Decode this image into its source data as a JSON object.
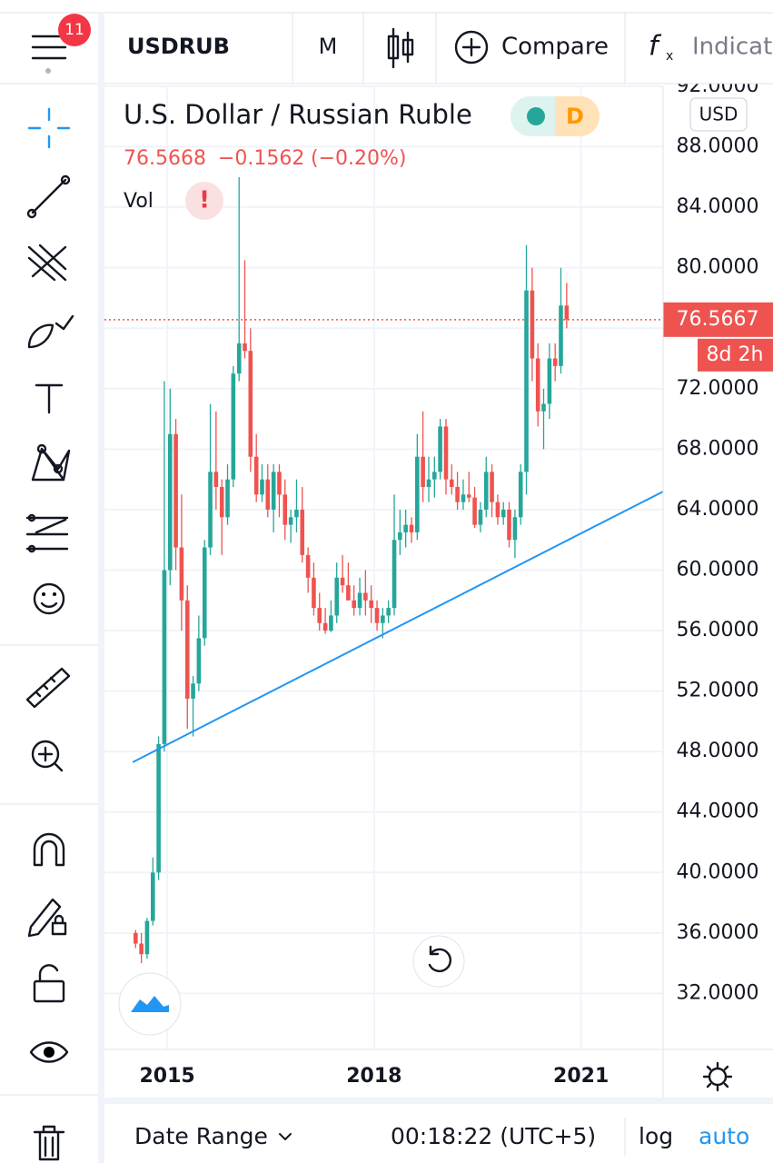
{
  "toolbar": {
    "badge": "11",
    "symbol": "USDRUB",
    "interval": "M",
    "compare": "Compare",
    "indicators": "Indicators"
  },
  "legend": {
    "title": "U.S. Dollar / Russian Ruble",
    "mode": "D",
    "currency": "USD",
    "last": "76.5668",
    "change": "−0.1562",
    "change_pct": "(−0.20%)",
    "volume": "Vol",
    "alert": "!"
  },
  "chart_data": {
    "type": "candlestick",
    "up_color": "#26a69a",
    "down_color": "#ef5350",
    "xlim": [
      2014.09,
      2022.19
    ],
    "xticks": [
      2015,
      2018,
      2021
    ],
    "ylim": [
      28.3,
      92.0
    ],
    "yticks": [
      {
        "value": 32,
        "label": "32.0000"
      },
      {
        "value": 36,
        "label": "36.0000"
      },
      {
        "value": 40,
        "label": "40.0000"
      },
      {
        "value": 44,
        "label": "44.0000"
      },
      {
        "value": 48,
        "label": "48.0000"
      },
      {
        "value": 52,
        "label": "52.0000"
      },
      {
        "value": 56,
        "label": "56.0000"
      },
      {
        "value": 60,
        "label": "60.0000"
      },
      {
        "value": 64,
        "label": "64.0000"
      },
      {
        "value": 68,
        "label": "68.0000"
      },
      {
        "value": 72,
        "label": "72.0000"
      },
      {
        "value": 76,
        "label": "76.0000"
      },
      {
        "value": 80,
        "label": "80.0000"
      },
      {
        "value": 84,
        "label": "84.0000"
      },
      {
        "value": 88,
        "label": "88.0000"
      },
      {
        "value": 92,
        "label": "92.0000"
      }
    ],
    "grid": true,
    "x": [
      2014.542,
      2014.625,
      2014.708,
      2014.792,
      2014.875,
      2014.958,
      2015.042,
      2015.125,
      2015.208,
      2015.292,
      2015.375,
      2015.458,
      2015.542,
      2015.625,
      2015.708,
      2015.792,
      2015.875,
      2015.958,
      2016.042,
      2016.125,
      2016.208,
      2016.292,
      2016.375,
      2016.458,
      2016.542,
      2016.625,
      2016.708,
      2016.792,
      2016.875,
      2016.958,
      2017.042,
      2017.125,
      2017.208,
      2017.292,
      2017.375,
      2017.458,
      2017.542,
      2017.625,
      2017.708,
      2017.792,
      2017.875,
      2017.958,
      2018.042,
      2018.125,
      2018.208,
      2018.292,
      2018.375,
      2018.458,
      2018.542,
      2018.625,
      2018.708,
      2018.792,
      2018.875,
      2018.958,
      2019.042,
      2019.125,
      2019.208,
      2019.292,
      2019.375,
      2019.458,
      2019.542,
      2019.625,
      2019.708,
      2019.792,
      2019.875,
      2019.958,
      2020.042,
      2020.125,
      2020.208,
      2020.292,
      2020.375,
      2020.458,
      2020.542,
      2020.625,
      2020.708,
      2020.792
    ],
    "open": [
      36.0,
      35.3,
      34.6,
      36.8,
      40.0,
      48.5,
      60.0,
      69.0,
      61.5,
      58.0,
      51.5,
      52.5,
      55.5,
      61.5,
      66.5,
      65.5,
      63.5,
      66.0,
      73.0,
      75.0,
      74.5,
      67.5,
      65.0,
      66.0,
      64.0,
      66.5,
      65.0,
      63.0,
      63.5,
      64.0,
      61.0,
      59.5,
      57.5,
      56.5,
      56.0,
      57.0,
      59.5,
      59.0,
      58.0,
      57.5,
      58.5,
      58.0,
      57.5,
      56.5,
      57.0,
      57.5,
      62.0,
      62.5,
      63.0,
      62.5,
      67.5,
      65.5,
      66.0,
      66.5,
      69.5,
      66.0,
      65.5,
      64.5,
      65.0,
      64.8,
      63.0,
      64.0,
      66.5,
      64.5,
      63.5,
      64.0,
      62.0,
      63.5,
      66.5,
      78.5,
      74.0,
      70.5,
      71.0,
      74.0,
      73.5,
      77.5
    ],
    "high": [
      36.2,
      36.0,
      37.0,
      41.0,
      49.0,
      72.5,
      72.0,
      70.0,
      65.0,
      59.0,
      53.0,
      57.0,
      62.0,
      71.0,
      70.5,
      66.0,
      67.0,
      73.5,
      86.0,
      80.5,
      76.0,
      69.0,
      67.0,
      67.0,
      67.0,
      67.0,
      66.0,
      64.0,
      66.0,
      65.5,
      61.5,
      60.5,
      58.5,
      57.5,
      58.0,
      60.5,
      61.0,
      60.5,
      59.0,
      59.5,
      60.0,
      59.0,
      58.0,
      57.5,
      58.0,
      65.0,
      64.0,
      64.0,
      63.5,
      69.0,
      70.5,
      67.5,
      67.5,
      70.0,
      70.0,
      67.0,
      66.5,
      66.0,
      66.5,
      65.5,
      64.5,
      67.5,
      67.0,
      65.0,
      64.5,
      64.5,
      64.0,
      67.0,
      81.5,
      80.0,
      75.0,
      72.0,
      75.0,
      75.0,
      80.0,
      79.0
    ],
    "low": [
      35.0,
      34.0,
      34.3,
      36.5,
      39.5,
      48.0,
      59.0,
      60.0,
      56.0,
      49.5,
      49.0,
      52.0,
      55.0,
      61.0,
      64.0,
      61.0,
      63.0,
      65.5,
      72.5,
      74.0,
      66.5,
      64.5,
      64.5,
      63.5,
      62.5,
      63.5,
      62.0,
      61.8,
      62.5,
      60.5,
      58.5,
      57.0,
      56.0,
      55.8,
      55.9,
      56.5,
      58.5,
      58.0,
      57.0,
      57.0,
      57.0,
      56.5,
      56.0,
      55.5,
      56.5,
      57.0,
      61.0,
      61.5,
      61.8,
      62.0,
      64.5,
      64.5,
      64.8,
      66.0,
      65.0,
      65.0,
      64.0,
      64.0,
      64.5,
      62.8,
      62.5,
      63.5,
      63.5,
      63.0,
      63.0,
      61.5,
      60.8,
      63.0,
      65.0,
      72.5,
      69.5,
      68.0,
      70.0,
      72.5,
      73.0,
      76.0
    ],
    "close": [
      35.3,
      34.6,
      36.8,
      40.0,
      48.5,
      60.0,
      69.0,
      61.5,
      58.0,
      51.5,
      52.5,
      55.5,
      61.5,
      66.5,
      65.5,
      63.5,
      66.0,
      73.0,
      75.0,
      74.5,
      67.5,
      65.0,
      66.0,
      64.0,
      66.5,
      65.0,
      63.0,
      63.5,
      64.0,
      61.0,
      59.5,
      57.5,
      56.5,
      56.0,
      57.0,
      59.5,
      59.0,
      58.0,
      57.5,
      58.5,
      58.0,
      57.5,
      56.5,
      57.0,
      57.5,
      62.0,
      62.5,
      63.0,
      62.5,
      67.5,
      65.5,
      66.0,
      66.5,
      69.5,
      66.0,
      65.5,
      64.5,
      65.0,
      64.8,
      63.0,
      64.0,
      66.5,
      64.5,
      63.5,
      64.0,
      62.0,
      63.5,
      66.5,
      78.5,
      74.0,
      70.5,
      71.0,
      74.0,
      73.5,
      77.5,
      76.57
    ],
    "trendline": {
      "x": [
        2014.5,
        2022.19
      ],
      "values": [
        47.3,
        65.2
      ],
      "color": "#2196f3"
    },
    "last_price": 76.5667,
    "countdown": "8d 2h"
  },
  "footer": {
    "date_range": "Date Range",
    "clock": "00:18:22 (UTC+5)",
    "log": "log",
    "auto": "auto"
  }
}
